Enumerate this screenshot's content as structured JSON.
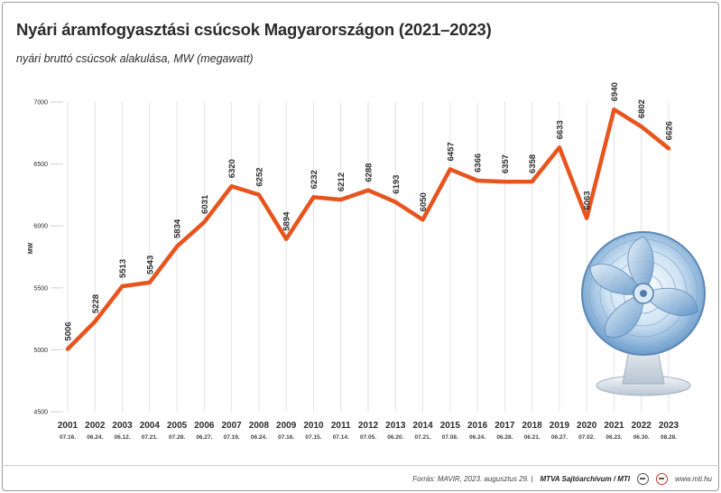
{
  "title": "Nyári áramfogyasztási csúcsok Magyarországon (2021–2023)",
  "subtitle": "nyári bruttó csúcsok alakulása, MW (megawatt)",
  "footer": {
    "source": "Forrás: MAVIR, 2023. augusztus 29. |",
    "agency": "MTVA Sajtóarchívum / MTI",
    "site": "www.mti.hu"
  },
  "colors": {
    "line": "#e8541e",
    "grid": "#e2e2e2",
    "text": "#2b2b2b"
  },
  "icons": [
    "electric-fan-illustration",
    "mtva-logo-icon",
    "mti-logo-icon"
  ],
  "chart_data": {
    "type": "line",
    "title": "Nyári áramfogyasztási csúcsok Magyarországon (2021–2023)",
    "subtitle": "nyári bruttó csúcsok alakulása, MW (megawatt)",
    "xlabel": "",
    "ylabel": "MW",
    "ylim": [
      4500,
      7000
    ],
    "yticks": [
      4500,
      5000,
      5500,
      6000,
      6500,
      7000
    ],
    "grid": true,
    "years": [
      "2001",
      "2002",
      "2003",
      "2004",
      "2005",
      "2006",
      "2007",
      "2008",
      "2009",
      "2010",
      "2011",
      "2012",
      "2013",
      "2014",
      "2015",
      "2016",
      "2017",
      "2018",
      "2019",
      "2020",
      "2021",
      "2022",
      "2023"
    ],
    "dates": [
      "07.16.",
      "06.24.",
      "06.12.",
      "07.21.",
      "07.28.",
      "06.27.",
      "07.19.",
      "06.24.",
      "07.16.",
      "07.15.",
      "07.14.",
      "07.05.",
      "06.20.",
      "07.21.",
      "07.08.",
      "06.24.",
      "06.28.",
      "06.21.",
      "06.27.",
      "07.02.",
      "06.23.",
      "06.30.",
      "08.28."
    ],
    "values": [
      5006,
      5228,
      5513,
      5543,
      5834,
      6031,
      6320,
      6252,
      5894,
      6232,
      6212,
      6288,
      6193,
      6050,
      6457,
      6366,
      6357,
      6358,
      6633,
      6063,
      6940,
      6802,
      6626
    ]
  }
}
